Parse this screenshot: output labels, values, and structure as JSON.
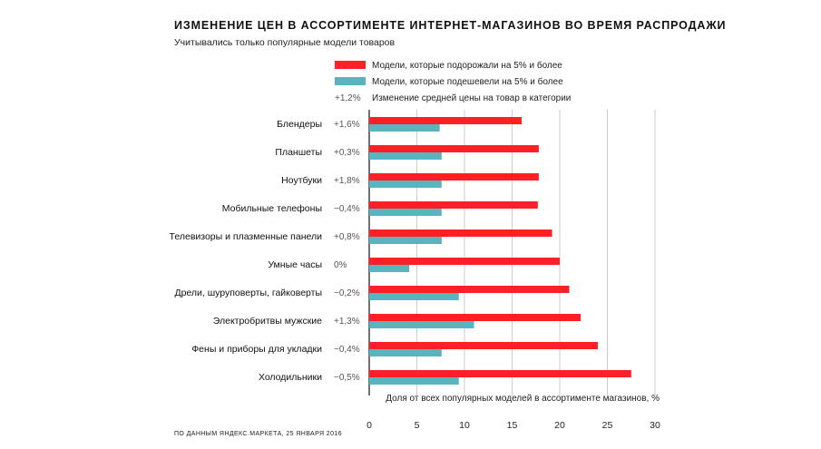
{
  "title": "ИЗМЕНЕНИЕ ЦЕН В АССОРТИМЕНТЕ ИНТЕРНЕТ-МАГАЗИНОВ ВО ВРЕМЯ РАСПРОДАЖИ",
  "subtitle": "Учитывались только популярные модели товаров",
  "source": "ПО ДАННЫМ ЯНДЕКС.МАРКЕТА, 25 ЯНВАРЯ 2016",
  "legend": {
    "up_label": "Модели, которые подорожали на 5% и более",
    "down_label": "Модели, которые подешевели на 5% и более",
    "change_sample": "+1,2%",
    "change_label": "Изменение средней цены на товар в категории"
  },
  "colors": {
    "up": "#ff1f26",
    "down": "#5ab4c0",
    "grid": "#bfbfbf",
    "axis": "#111111"
  },
  "chart_data": {
    "type": "bar",
    "orientation": "horizontal",
    "categories": [
      "Блендеры",
      "Планшеты",
      "Ноутбуки",
      "Мобильные телефоны",
      "Телевизоры и плазменные панели",
      "Умные часы",
      "Дрели, шуруповерты, гайковерты",
      "Электробритвы мужские",
      "Фены и приборы для укладки",
      "Холодильники"
    ],
    "price_change_labels": [
      "+1,6%",
      "+0,3%",
      "+1,8%",
      "−0,4%",
      "+0,8%",
      "0%",
      "−0,2%",
      "+1,3%",
      "−0,4%",
      "−0,5%"
    ],
    "series": [
      {
        "name": "Модели, которые подорожали на 5% и более",
        "values": [
          16,
          17.8,
          17.8,
          17.7,
          19.2,
          20,
          21,
          22.2,
          24,
          27.5
        ]
      },
      {
        "name": "Модели, которые подешевели на 5% и более",
        "values": [
          7.4,
          7.6,
          7.6,
          7.6,
          7.6,
          4.2,
          9.4,
          11,
          7.6,
          9.4
        ]
      }
    ],
    "xlabel": "Доля от всех популярных моделей в ассортименте магазинов, %",
    "xlim": [
      0,
      30
    ],
    "xticks": [
      0,
      5,
      10,
      15,
      20,
      25,
      30
    ],
    "grid": true
  }
}
